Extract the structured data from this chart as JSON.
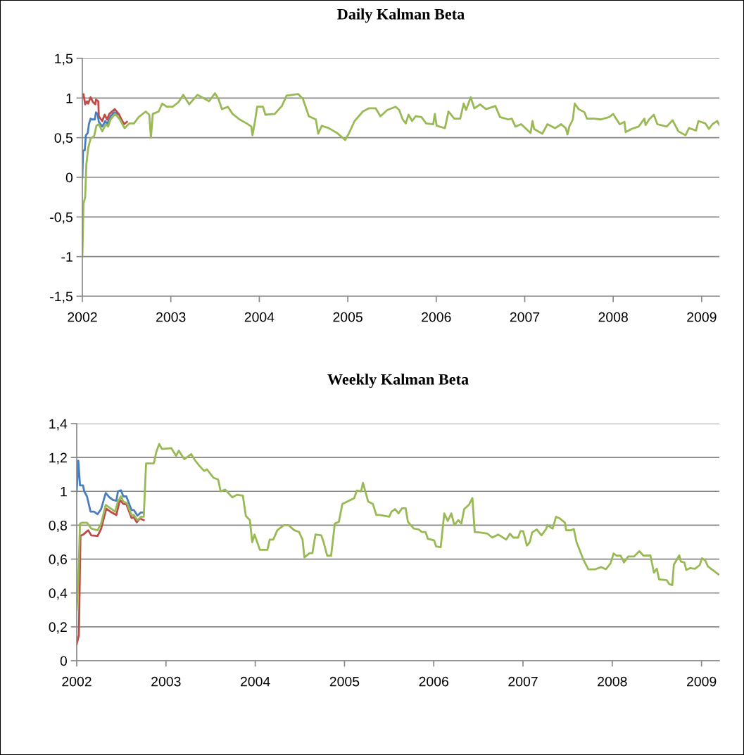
{
  "chart_data": [
    {
      "type": "line",
      "title": "Daily Kalman Beta",
      "xlim": [
        2002,
        2009.2
      ],
      "xticks": [
        2002,
        2003,
        2004,
        2005,
        2006,
        2007,
        2008,
        2009
      ],
      "ylim": [
        -1.5,
        1.5
      ],
      "yticks": [
        {
          "value": -1.5,
          "label": "-1,5"
        },
        {
          "value": -1,
          "label": "-1"
        },
        {
          "value": -0.5,
          "label": "-0,5"
        },
        {
          "value": 0,
          "label": "0"
        },
        {
          "value": 0.5,
          "label": "0,5"
        },
        {
          "value": 1,
          "label": "1"
        },
        {
          "value": 1.5,
          "label": "1,5"
        }
      ],
      "grid": "y",
      "line_style": "solid",
      "series": [
        {
          "color": "#4a7ebb",
          "x": [
            2002.0,
            2002.008,
            2002.027,
            2002.04,
            2002.061,
            2002.074,
            2002.093,
            2002.106,
            2002.141,
            2002.154,
            2002.172,
            2002.186,
            2002.225,
            2002.26,
            2002.279,
            2002.318,
            2002.358,
            2002.398
          ],
          "values": [
            0.0,
            0.34,
            0.34,
            0.53,
            0.56,
            0.67,
            0.74,
            0.73,
            0.73,
            0.82,
            0.8,
            0.7,
            0.64,
            0.71,
            0.67,
            0.77,
            0.82,
            0.8
          ]
        },
        {
          "color": "#be4b48",
          "x": [
            2002.0,
            2002.013,
            2002.032,
            2002.053,
            2002.066,
            2002.093,
            2002.119,
            2002.146,
            2002.154,
            2002.18,
            2002.186,
            2002.225,
            2002.252,
            2002.279,
            2002.305,
            2002.366,
            2002.411,
            2002.438,
            2002.472,
            2002.504
          ],
          "values": [
            1.01,
            1.05,
            0.92,
            0.96,
            0.93,
            1.01,
            0.95,
            0.92,
            0.98,
            0.96,
            0.77,
            0.71,
            0.79,
            0.73,
            0.8,
            0.86,
            0.8,
            0.74,
            0.67,
            0.7
          ]
        },
        {
          "color": "#98b954",
          "x": [
            2002.0,
            2002.013,
            2002.032,
            2002.045,
            2002.066,
            2002.093,
            2002.133,
            2002.159,
            2002.186,
            2002.225,
            2002.265,
            2002.292,
            2002.318,
            2002.371,
            2002.424,
            2002.477,
            2002.531,
            2002.584,
            2002.637,
            2002.716,
            2002.756,
            2002.775,
            2002.796,
            2002.862,
            2002.902,
            2002.955,
            2003.021,
            2003.088,
            2003.141,
            2003.207,
            2003.3,
            2003.432,
            2003.499,
            2003.538,
            2003.578,
            2003.645,
            2003.698,
            2003.777,
            2003.857,
            2003.91,
            2003.923,
            2003.95,
            2003.976,
            2004.042,
            2004.069,
            2004.175,
            2004.255,
            2004.308,
            2004.44,
            2004.493,
            2004.56,
            2004.639,
            2004.666,
            2004.706,
            2004.785,
            2004.878,
            2004.971,
            2005.011,
            2005.077,
            2005.17,
            2005.236,
            2005.316,
            2005.369,
            2005.448,
            2005.541,
            2005.581,
            2005.621,
            2005.655,
            2005.687,
            2005.727,
            2005.767,
            2005.833,
            2005.886,
            2005.966,
            2005.984,
            2006.005,
            2006.098,
            2006.138,
            2006.204,
            2006.271,
            2006.31,
            2006.337,
            2006.39,
            2006.43,
            2006.496,
            2006.562,
            2006.668,
            2006.721,
            2006.814,
            2006.854,
            2006.894,
            2006.96,
            2007.066,
            2007.088,
            2007.106,
            2007.199,
            2007.257,
            2007.345,
            2007.411,
            2007.464,
            2007.483,
            2007.504,
            2007.544,
            2007.565,
            2007.61,
            2007.676,
            2007.703,
            2007.782,
            2007.862,
            2007.955,
            2008.0,
            2008.021,
            2008.074,
            2008.127,
            2008.141,
            2008.207,
            2008.287,
            2008.353,
            2008.366,
            2008.406,
            2008.459,
            2008.499,
            2008.605,
            2008.671,
            2008.737,
            2008.817,
            2008.857,
            2008.936,
            2008.963,
            2009.042,
            2009.082,
            2009.122,
            2009.175,
            2009.2
          ],
          "values": [
            -1.0,
            -0.33,
            -0.25,
            0.16,
            0.37,
            0.49,
            0.52,
            0.65,
            0.67,
            0.58,
            0.67,
            0.64,
            0.73,
            0.8,
            0.73,
            0.62,
            0.68,
            0.68,
            0.76,
            0.83,
            0.79,
            0.5,
            0.8,
            0.83,
            0.93,
            0.89,
            0.89,
            0.95,
            1.04,
            0.92,
            1.04,
            0.96,
            1.06,
            0.99,
            0.86,
            0.89,
            0.8,
            0.73,
            0.68,
            0.64,
            0.53,
            0.7,
            0.89,
            0.89,
            0.79,
            0.8,
            0.9,
            1.03,
            1.05,
            0.99,
            0.77,
            0.73,
            0.55,
            0.65,
            0.62,
            0.56,
            0.47,
            0.55,
            0.71,
            0.83,
            0.87,
            0.87,
            0.77,
            0.85,
            0.89,
            0.85,
            0.73,
            0.68,
            0.79,
            0.71,
            0.77,
            0.76,
            0.68,
            0.67,
            0.8,
            0.65,
            0.62,
            0.83,
            0.74,
            0.74,
            0.93,
            0.85,
            1.01,
            0.87,
            0.92,
            0.86,
            0.9,
            0.76,
            0.73,
            0.74,
            0.64,
            0.67,
            0.56,
            0.71,
            0.61,
            0.55,
            0.67,
            0.62,
            0.67,
            0.62,
            0.54,
            0.64,
            0.73,
            0.93,
            0.86,
            0.82,
            0.74,
            0.74,
            0.73,
            0.76,
            0.8,
            0.76,
            0.67,
            0.7,
            0.57,
            0.61,
            0.64,
            0.74,
            0.66,
            0.73,
            0.79,
            0.67,
            0.64,
            0.72,
            0.58,
            0.53,
            0.62,
            0.59,
            0.71,
            0.68,
            0.61,
            0.67,
            0.71,
            0.66
          ]
        }
      ]
    },
    {
      "type": "line",
      "title": "Weekly Kalman Beta",
      "xlim": [
        2002,
        2009.2
      ],
      "xticks": [
        2002,
        2003,
        2004,
        2005,
        2006,
        2007,
        2008,
        2009
      ],
      "ylim": [
        0,
        1.4
      ],
      "yticks": [
        0,
        {
          "value": 0.2,
          "label": "0,2"
        },
        {
          "value": 0.4,
          "label": "0,4"
        },
        {
          "value": 0.6,
          "label": "0,6"
        },
        {
          "value": 0.8,
          "label": "0,8"
        },
        {
          "value": 1,
          "label": "1"
        },
        {
          "value": 1.2,
          "label": "1,2"
        },
        {
          "value": 1.4,
          "label": "1,4"
        }
      ],
      "grid": "y",
      "line_style": "solid",
      "series": [
        {
          "color": "#4a7ebb",
          "x": [
            2002.0,
            2002.018,
            2002.037,
            2002.071,
            2002.084,
            2002.115,
            2002.155,
            2002.194,
            2002.234,
            2002.273,
            2002.325,
            2002.365,
            2002.404,
            2002.444,
            2002.462,
            2002.496,
            2002.522,
            2002.556,
            2002.614,
            2002.64,
            2002.68,
            2002.719,
            2002.74
          ],
          "values": [
            1.0,
            1.18,
            1.035,
            1.035,
            1.0,
            0.97,
            0.88,
            0.88,
            0.865,
            0.895,
            0.99,
            0.965,
            0.95,
            0.944,
            1.0,
            1.006,
            0.97,
            0.97,
            0.89,
            0.89,
            0.857,
            0.875,
            0.875
          ]
        },
        {
          "color": "#be4b48",
          "x": [
            2002.0,
            2002.024,
            2002.042,
            2002.076,
            2002.129,
            2002.163,
            2002.234,
            2002.273,
            2002.331,
            2002.378,
            2002.444,
            2002.483,
            2002.522,
            2002.556,
            2002.614,
            2002.64,
            2002.672,
            2002.706,
            2002.751
          ],
          "values": [
            0.097,
            0.15,
            0.737,
            0.746,
            0.77,
            0.74,
            0.737,
            0.778,
            0.898,
            0.88,
            0.86,
            0.95,
            0.926,
            0.923,
            0.843,
            0.847,
            0.817,
            0.84,
            0.83
          ]
        },
        {
          "color": "#98b954",
          "x": [
            2002.0,
            2002.018,
            2002.037,
            2002.063,
            2002.115,
            2002.163,
            2002.234,
            2002.273,
            2002.325,
            2002.378,
            2002.43,
            2002.462,
            2002.496,
            2002.522,
            2002.562,
            2002.614,
            2002.64,
            2002.68,
            2002.719,
            2002.751,
            2002.777,
            2002.811,
            2002.864,
            2002.89,
            2002.924,
            2002.955,
            2003.06,
            2003.113,
            2003.144,
            2003.205,
            2003.283,
            2003.323,
            2003.375,
            2003.428,
            2003.459,
            2003.533,
            2003.585,
            2003.612,
            2003.664,
            2003.743,
            2003.795,
            2003.861,
            2003.895,
            2003.94,
            2003.966,
            2003.992,
            2004.052,
            2004.136,
            2004.163,
            2004.202,
            2004.247,
            2004.32,
            2004.373,
            2004.438,
            2004.491,
            2004.53,
            2004.551,
            2004.609,
            2004.64,
            2004.675,
            2004.74,
            2004.766,
            2004.806,
            2004.85,
            2004.892,
            2004.937,
            2004.976,
            2005.108,
            2005.139,
            2005.186,
            2005.207,
            2005.265,
            2005.318,
            2005.357,
            2005.396,
            2005.501,
            2005.527,
            2005.567,
            2005.606,
            2005.645,
            2005.685,
            2005.711,
            2005.777,
            2005.829,
            2005.868,
            2005.908,
            2005.934,
            2006.005,
            2006.026,
            2006.078,
            2006.118,
            2006.157,
            2006.197,
            2006.231,
            2006.275,
            2006.31,
            2006.341,
            2006.393,
            2006.433,
            2006.459,
            2006.525,
            2006.603,
            2006.656,
            2006.721,
            2006.813,
            2006.853,
            2006.892,
            2006.945,
            2006.971,
            2007.002,
            2007.044,
            2007.076,
            2007.102,
            2007.154,
            2007.207,
            2007.259,
            2007.273,
            2007.333,
            2007.37,
            2007.412,
            2007.47,
            2007.483,
            2007.535,
            2007.569,
            2007.6,
            2007.674,
            2007.732,
            2007.811,
            2007.876,
            2007.929,
            2007.981,
            2008.015,
            2008.047,
            2008.094,
            2008.131,
            2008.178,
            2008.244,
            2008.304,
            2008.349,
            2008.427,
            2008.467,
            2008.499,
            2008.525,
            2008.611,
            2008.638,
            2008.672,
            2008.69,
            2008.751,
            2008.769,
            2008.808,
            2008.829,
            2008.874,
            2008.926,
            2008.979,
            2009.005,
            2009.044,
            2009.071,
            2009.123,
            2009.189
          ],
          "values": [
            0.3,
            0.48,
            0.81,
            0.815,
            0.815,
            0.78,
            0.77,
            0.81,
            0.92,
            0.9,
            0.88,
            0.94,
            0.97,
            0.94,
            0.93,
            0.86,
            0.86,
            0.83,
            0.85,
            0.85,
            1.165,
            1.165,
            1.165,
            1.23,
            1.28,
            1.25,
            1.255,
            1.21,
            1.24,
            1.19,
            1.22,
            1.185,
            1.15,
            1.12,
            1.13,
            1.08,
            1.07,
            1.0,
            1.01,
            0.965,
            0.98,
            0.975,
            0.855,
            0.83,
            0.7,
            0.745,
            0.655,
            0.655,
            0.715,
            0.715,
            0.77,
            0.8,
            0.8,
            0.77,
            0.76,
            0.715,
            0.61,
            0.635,
            0.635,
            0.745,
            0.74,
            0.7,
            0.62,
            0.62,
            0.81,
            0.82,
            0.925,
            0.96,
            1.005,
            1.0,
            1.05,
            0.94,
            0.925,
            0.86,
            0.86,
            0.85,
            0.88,
            0.895,
            0.87,
            0.9,
            0.9,
            0.82,
            0.78,
            0.775,
            0.76,
            0.76,
            0.72,
            0.71,
            0.675,
            0.67,
            0.87,
            0.825,
            0.87,
            0.8,
            0.83,
            0.81,
            0.895,
            0.92,
            0.96,
            0.76,
            0.757,
            0.75,
            0.727,
            0.745,
            0.715,
            0.75,
            0.727,
            0.727,
            0.765,
            0.765,
            0.68,
            0.7,
            0.757,
            0.775,
            0.74,
            0.778,
            0.8,
            0.78,
            0.85,
            0.84,
            0.815,
            0.77,
            0.77,
            0.778,
            0.7,
            0.6,
            0.54,
            0.54,
            0.553,
            0.54,
            0.575,
            0.633,
            0.62,
            0.62,
            0.58,
            0.615,
            0.615,
            0.647,
            0.62,
            0.622,
            0.52,
            0.543,
            0.48,
            0.475,
            0.453,
            0.446,
            0.567,
            0.622,
            0.585,
            0.58,
            0.536,
            0.547,
            0.543,
            0.564,
            0.605,
            0.59,
            0.557,
            0.536,
            0.51
          ]
        }
      ]
    }
  ]
}
